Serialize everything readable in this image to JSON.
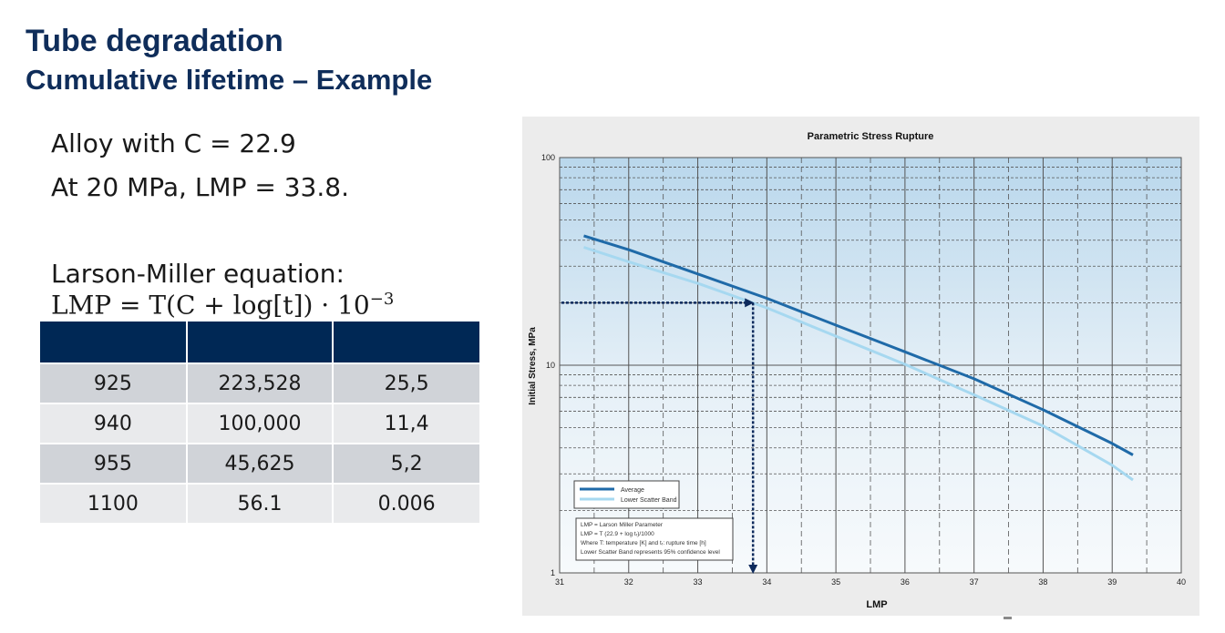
{
  "slide": {
    "title": "Tube degradation",
    "subtitle": "Cumulative lifetime – Example",
    "bullets": [
      "Alloy with C = 22.9",
      "At 20 MPa, LMP = 33.8."
    ],
    "equation_label": "Larson-Miller equation:",
    "equation": {
      "lhs": "LMP = T(C + log[t]) · 10",
      "exp": "−3"
    }
  },
  "table": {
    "headers": [
      "",
      "",
      ""
    ],
    "rows": [
      [
        "925",
        "223,528",
        "25,5"
      ],
      [
        "940",
        "100,000",
        "11,4"
      ],
      [
        "955",
        "45,625",
        "5,2"
      ],
      [
        "1100",
        "56.1",
        "0.006"
      ]
    ]
  },
  "colors": {
    "title": "#0f2d5a",
    "table_header": "#002855",
    "row_dark": "#d0d3d8",
    "row_light": "#e9eaec",
    "average_line": "#1f6aa8",
    "lower_band_line": "#a6d8f0",
    "arrow": "#0d2a5c"
  },
  "chart_data": {
    "type": "line",
    "title": "Parametric Stress Rupture",
    "xlabel": "LMP",
    "ylabel": "Initial Stress, MPa",
    "xlim": [
      31,
      40
    ],
    "ylim": [
      1,
      100
    ],
    "yscale": "log",
    "grid": true,
    "x_ticks": [
      "31",
      "32",
      "33",
      "34",
      "35",
      "36",
      "37",
      "38",
      "39",
      "40"
    ],
    "y_ticks": [
      "1",
      "10",
      "100"
    ],
    "series": [
      {
        "name": "Average",
        "color": "#1f6aa8",
        "x": [
          31.35,
          32,
          33,
          34,
          35,
          36,
          37,
          38,
          39,
          39.3
        ],
        "y": [
          42,
          36,
          27.5,
          21,
          15.6,
          11.6,
          8.6,
          6.1,
          4.2,
          3.7
        ]
      },
      {
        "name": "Lower Scatter Band",
        "color": "#a6d8f0",
        "x": [
          31.35,
          32,
          33,
          34,
          35,
          36,
          37,
          38,
          39,
          39.3
        ],
        "y": [
          37,
          31.5,
          24.8,
          18.9,
          13.8,
          10.1,
          7.2,
          5.1,
          3.3,
          2.8
        ]
      }
    ],
    "annotation": {
      "lmp": 33.8,
      "stress": 20
    },
    "legend_position": "lower-left",
    "note_lines": [
      "LMP = Larson Miller Parameter",
      "LMP = T (22.9 + log tᵣ)/1000",
      "Where T: temperature [K] and tᵣ: rupture time [h]",
      "Lower Scatter Band represents 95% confidence level"
    ]
  }
}
